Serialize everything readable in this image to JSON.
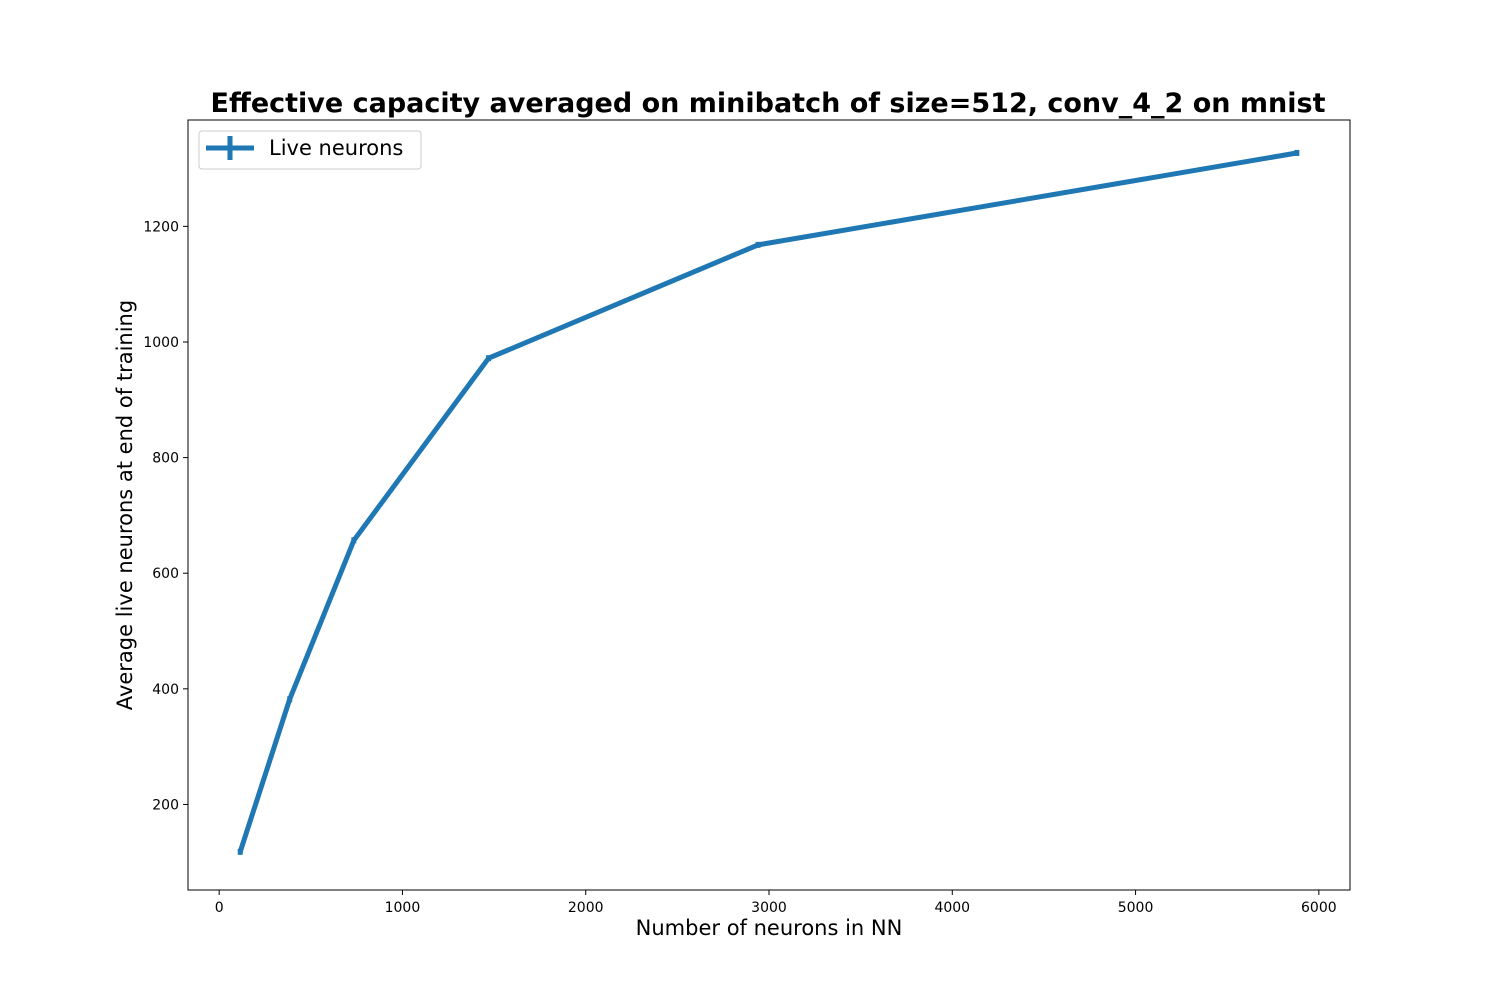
{
  "chart_data": {
    "type": "line",
    "title": "Effective capacity averaged on minibatch of size=512, conv_4_2 on mnist",
    "xlabel": "Number of neurons in NN",
    "ylabel": "Average live neurons at end of training",
    "xlim": [
      -170,
      6170
    ],
    "ylim": [
      52,
      1384
    ],
    "xticks": [
      0,
      1000,
      2000,
      3000,
      4000,
      5000,
      6000
    ],
    "yticks": [
      200,
      400,
      600,
      800,
      1000,
      1200
    ],
    "grid": false,
    "legend_position": "top-left",
    "series": [
      {
        "name": "Live neurons",
        "color": "#1f77b4",
        "x": [
          115,
          385,
          735,
          1470,
          2940,
          5880
        ],
        "y": [
          118,
          382,
          657,
          972,
          1168,
          1327
        ]
      }
    ]
  }
}
